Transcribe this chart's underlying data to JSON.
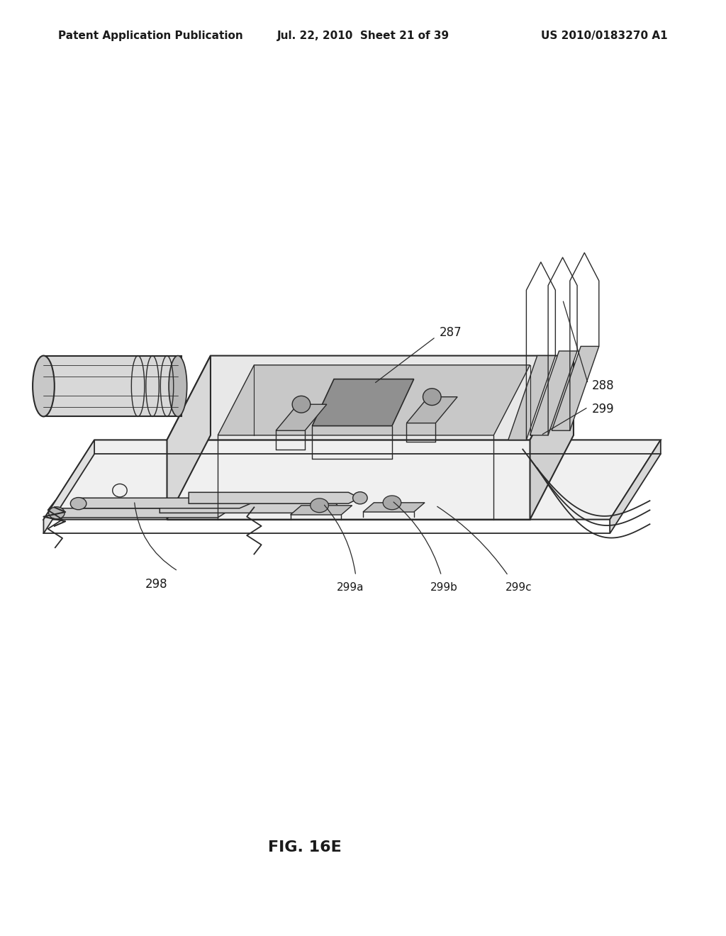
{
  "background_color": "#ffffff",
  "header_left": "Patent Application Publication",
  "header_center": "Jul. 22, 2010  Sheet 21 of 39",
  "header_right": "US 2010/0183270 A1",
  "figure_label": "FIG. 16E",
  "text_color": "#1a1a1a",
  "line_color": "#2a2a2a",
  "header_fontsize": 11,
  "label_fontsize": 12,
  "fig_label_fontsize": 16
}
